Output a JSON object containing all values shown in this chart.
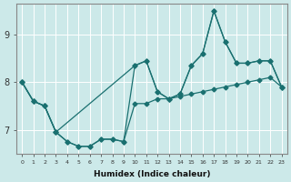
{
  "xlabel": "Humidex (Indice chaleur)",
  "x_ticks": [
    0,
    1,
    2,
    3,
    4,
    5,
    6,
    7,
    8,
    9,
    10,
    11,
    12,
    13,
    14,
    15,
    16,
    17,
    18,
    19,
    20,
    21,
    22,
    23
  ],
  "y_ticks": [
    7,
    8,
    9
  ],
  "xlim": [
    -0.5,
    23.5
  ],
  "ylim": [
    6.5,
    9.65
  ],
  "bg_color": "#cce9e9",
  "line_color": "#1a7070",
  "grid_color": "#ffffff",
  "line1_x": [
    0,
    1,
    2,
    3,
    4,
    5,
    6,
    7,
    8,
    9,
    10,
    11,
    12,
    13,
    14,
    15,
    16,
    17,
    18,
    19,
    20,
    21,
    22,
    23
  ],
  "line1_y": [
    8.0,
    7.6,
    7.5,
    6.95,
    6.75,
    6.65,
    6.65,
    6.8,
    6.8,
    6.75,
    7.55,
    7.55,
    7.65,
    7.65,
    7.7,
    7.75,
    7.8,
    7.85,
    7.9,
    7.95,
    8.0,
    8.05,
    8.1,
    7.9
  ],
  "line2_x": [
    0,
    1,
    2,
    3,
    10,
    11,
    12,
    13,
    14,
    15,
    16,
    17,
    18,
    19,
    20,
    21,
    22,
    23
  ],
  "line2_y": [
    8.0,
    7.6,
    7.5,
    6.95,
    8.35,
    8.45,
    7.8,
    7.65,
    7.75,
    8.35,
    8.6,
    9.5,
    8.85,
    8.4,
    8.4,
    8.45,
    8.45,
    7.9
  ],
  "line3_x": [
    0,
    1,
    2,
    3,
    4,
    5,
    6,
    7,
    8,
    9,
    10,
    11,
    12,
    13,
    14,
    15,
    16,
    17,
    18,
    19,
    20,
    21,
    22,
    23
  ],
  "line3_y": [
    8.0,
    7.6,
    7.5,
    6.95,
    6.75,
    6.65,
    6.65,
    6.8,
    6.8,
    6.75,
    8.35,
    8.45,
    7.8,
    7.65,
    7.75,
    8.35,
    8.6,
    9.5,
    8.85,
    8.4,
    8.4,
    8.45,
    8.45,
    7.9
  ]
}
